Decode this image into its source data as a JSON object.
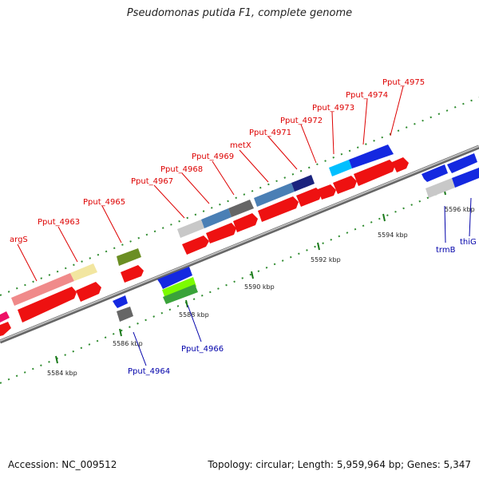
{
  "title": "Pseudomonas putida F1, complete genome",
  "footer": {
    "accession": "Accession: NC_009512",
    "summary": "Topology: circular; Length: 5,959,964 bp; Genes: 5,347"
  },
  "colors": {
    "forward_label": "#dd0000",
    "reverse_label": "#0000aa",
    "backbone": "#888888",
    "tick": "#228b22"
  },
  "ticks": [
    "5584 kbp",
    "5586 kbp",
    "5588 kbp",
    "5590 kbp",
    "5592 kbp",
    "5594 kbp",
    "5596 kbp"
  ],
  "forward_labels": [
    "argS",
    "Pput_4963",
    "Pput_4965",
    "Pput_4967",
    "Pput_4968",
    "Pput_4969",
    "metX",
    "Pput_4971",
    "Pput_4972",
    "Pput_4973",
    "Pput_4974",
    "Pput_4975"
  ],
  "reverse_labels": [
    "Pput_4964",
    "Pput_4966",
    "trmB",
    "thiG"
  ]
}
